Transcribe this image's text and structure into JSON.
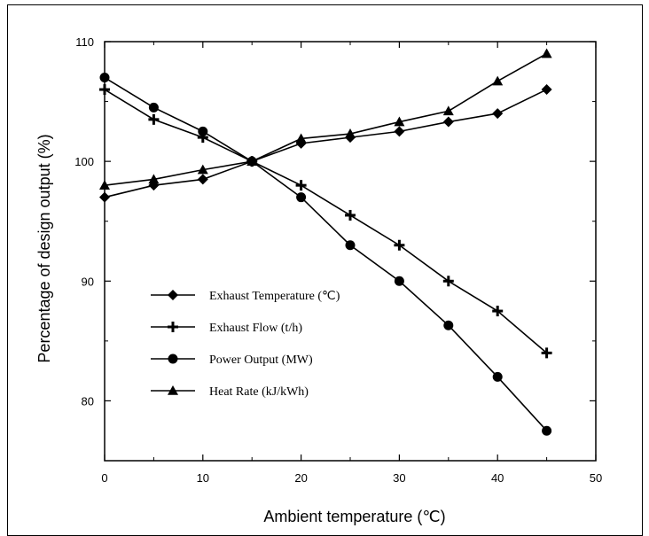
{
  "chart_data": {
    "type": "line",
    "title": "",
    "xlabel": "Ambient temperature (℃)",
    "ylabel": "Percentage of design output (%)",
    "xlim": [
      0,
      50
    ],
    "ylim": [
      75,
      110
    ],
    "xticks": [
      0,
      10,
      20,
      30,
      40,
      50
    ],
    "yticks": [
      80,
      90,
      100,
      110
    ],
    "grid": false,
    "legend_position": "lower-left",
    "series": [
      {
        "name": "Exhaust Temperature (℃)",
        "marker": "diamond",
        "x": [
          0,
          5,
          10,
          15,
          20,
          25,
          30,
          35,
          40,
          45
        ],
        "y": [
          97.0,
          98.0,
          98.5,
          100.0,
          101.5,
          102.0,
          102.5,
          103.3,
          104.0,
          106.0
        ]
      },
      {
        "name": "Exhaust Flow (t/h)",
        "marker": "plus",
        "x": [
          0,
          5,
          10,
          15,
          20,
          25,
          30,
          35,
          40,
          45
        ],
        "y": [
          106.0,
          103.5,
          102.0,
          100.0,
          98.0,
          95.5,
          93.0,
          90.0,
          87.5,
          84.0
        ]
      },
      {
        "name": "Power Output (MW)",
        "marker": "circle",
        "x": [
          0,
          5,
          10,
          15,
          20,
          25,
          30,
          35,
          40,
          45
        ],
        "y": [
          107.0,
          104.5,
          102.5,
          100.0,
          97.0,
          93.0,
          90.0,
          86.3,
          82.0,
          77.5
        ]
      },
      {
        "name": "Heat Rate (kJ/kWh)",
        "marker": "triangle",
        "x": [
          0,
          5,
          10,
          15,
          20,
          25,
          30,
          35,
          40,
          45
        ],
        "y": [
          98.0,
          98.5,
          99.3,
          100.0,
          101.9,
          102.3,
          103.3,
          104.2,
          106.7,
          109.0
        ]
      }
    ]
  }
}
